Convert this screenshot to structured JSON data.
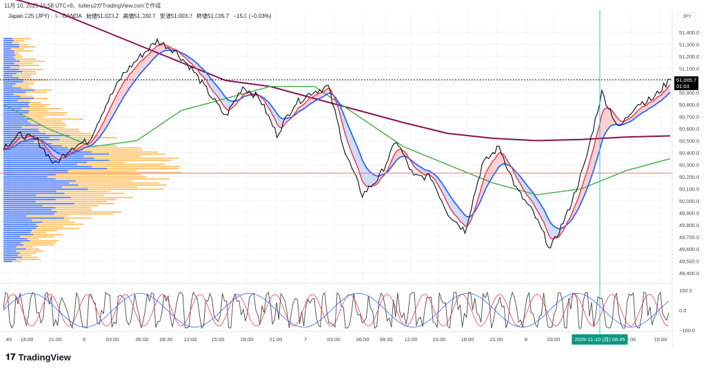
{
  "caption": "11月 10, 2025 15:58 UTC+9、tuiteru2がTradingView.comで作成",
  "legend": {
    "symbol": "Japan 225 (JPY) · 5 · OANDA",
    "open": "始値51,023.2",
    "high": "高値51,030.7",
    "low": "安値51,003.2",
    "close": "終値51,005.7",
    "change": "−15.0 (−0.03%)"
  },
  "currency": "JPY",
  "last_price": "51,005.7",
  "countdown": "01:03",
  "price_ticks": [
    "51,400.0",
    "51,300.0",
    "51,200.0",
    "51,100.0",
    "50,900.0",
    "50,800.0",
    "50,700.0",
    "50,600.0",
    "50,500.0",
    "50,400.0",
    "50,300.0",
    "50,200.0",
    "50,100.0",
    "50,000.0",
    "49,900.0",
    "49,800.0",
    "49,700.0",
    "49,600.0",
    "49,500.0",
    "49,400.0"
  ],
  "osc_ticks": [
    "100.0",
    "0.0",
    "−100.0"
  ],
  "time_labels": [
    ":45",
    "18:00",
    "21:00",
    "6",
    "03:00",
    "06:00",
    "09:30",
    "12:00",
    "15:00",
    "18:00",
    "21:00",
    "7",
    "03:00",
    "06:00",
    "09:30",
    "12:00",
    "15:00",
    "18:00",
    "21:00",
    "8",
    "03:00",
    "2:00",
    "15:00"
  ],
  "crosshair_time": "2025-11-10 (月)  08:45",
  "brand": "TradingView",
  "colors": {
    "up_fill": "#f7c5c5",
    "down_fill": "#c5d3f7",
    "fast_ma": "#f23645",
    "slow_ma": "#2962ff",
    "green_ma": "#4caf50",
    "maroon_ma": "#880e4f",
    "crosshair": "#26c6da",
    "hline": "#e57373"
  },
  "chart_data": {
    "type": "line",
    "close": [
      50450,
      50550,
      50500,
      50300,
      50450,
      50500,
      50800,
      51050,
      51200,
      51330,
      51250,
      51100,
      50900,
      50700,
      50950,
      50850,
      50550,
      50800,
      50900,
      50950,
      50400,
      50050,
      50200,
      50500,
      50200,
      50200,
      49900,
      49750,
      50300,
      50450,
      50100,
      49900,
      49600,
      49900,
      50300,
      50900,
      50600,
      50800,
      50850,
      51010
    ],
    "maroon_ma": [
      51700,
      51600,
      51450,
      51300,
      51150,
      51000,
      50950,
      50850,
      50750,
      50650,
      50560,
      50520,
      50500,
      50510,
      50530,
      50540
    ],
    "green_ma": [
      50800,
      50600,
      50450,
      50500,
      50750,
      50850,
      50950,
      50950,
      50700,
      50450,
      50300,
      50150,
      50050,
      50100,
      50250,
      50350
    ],
    "horizontal_line": 50230,
    "ylim": [
      49400,
      51450
    ]
  }
}
